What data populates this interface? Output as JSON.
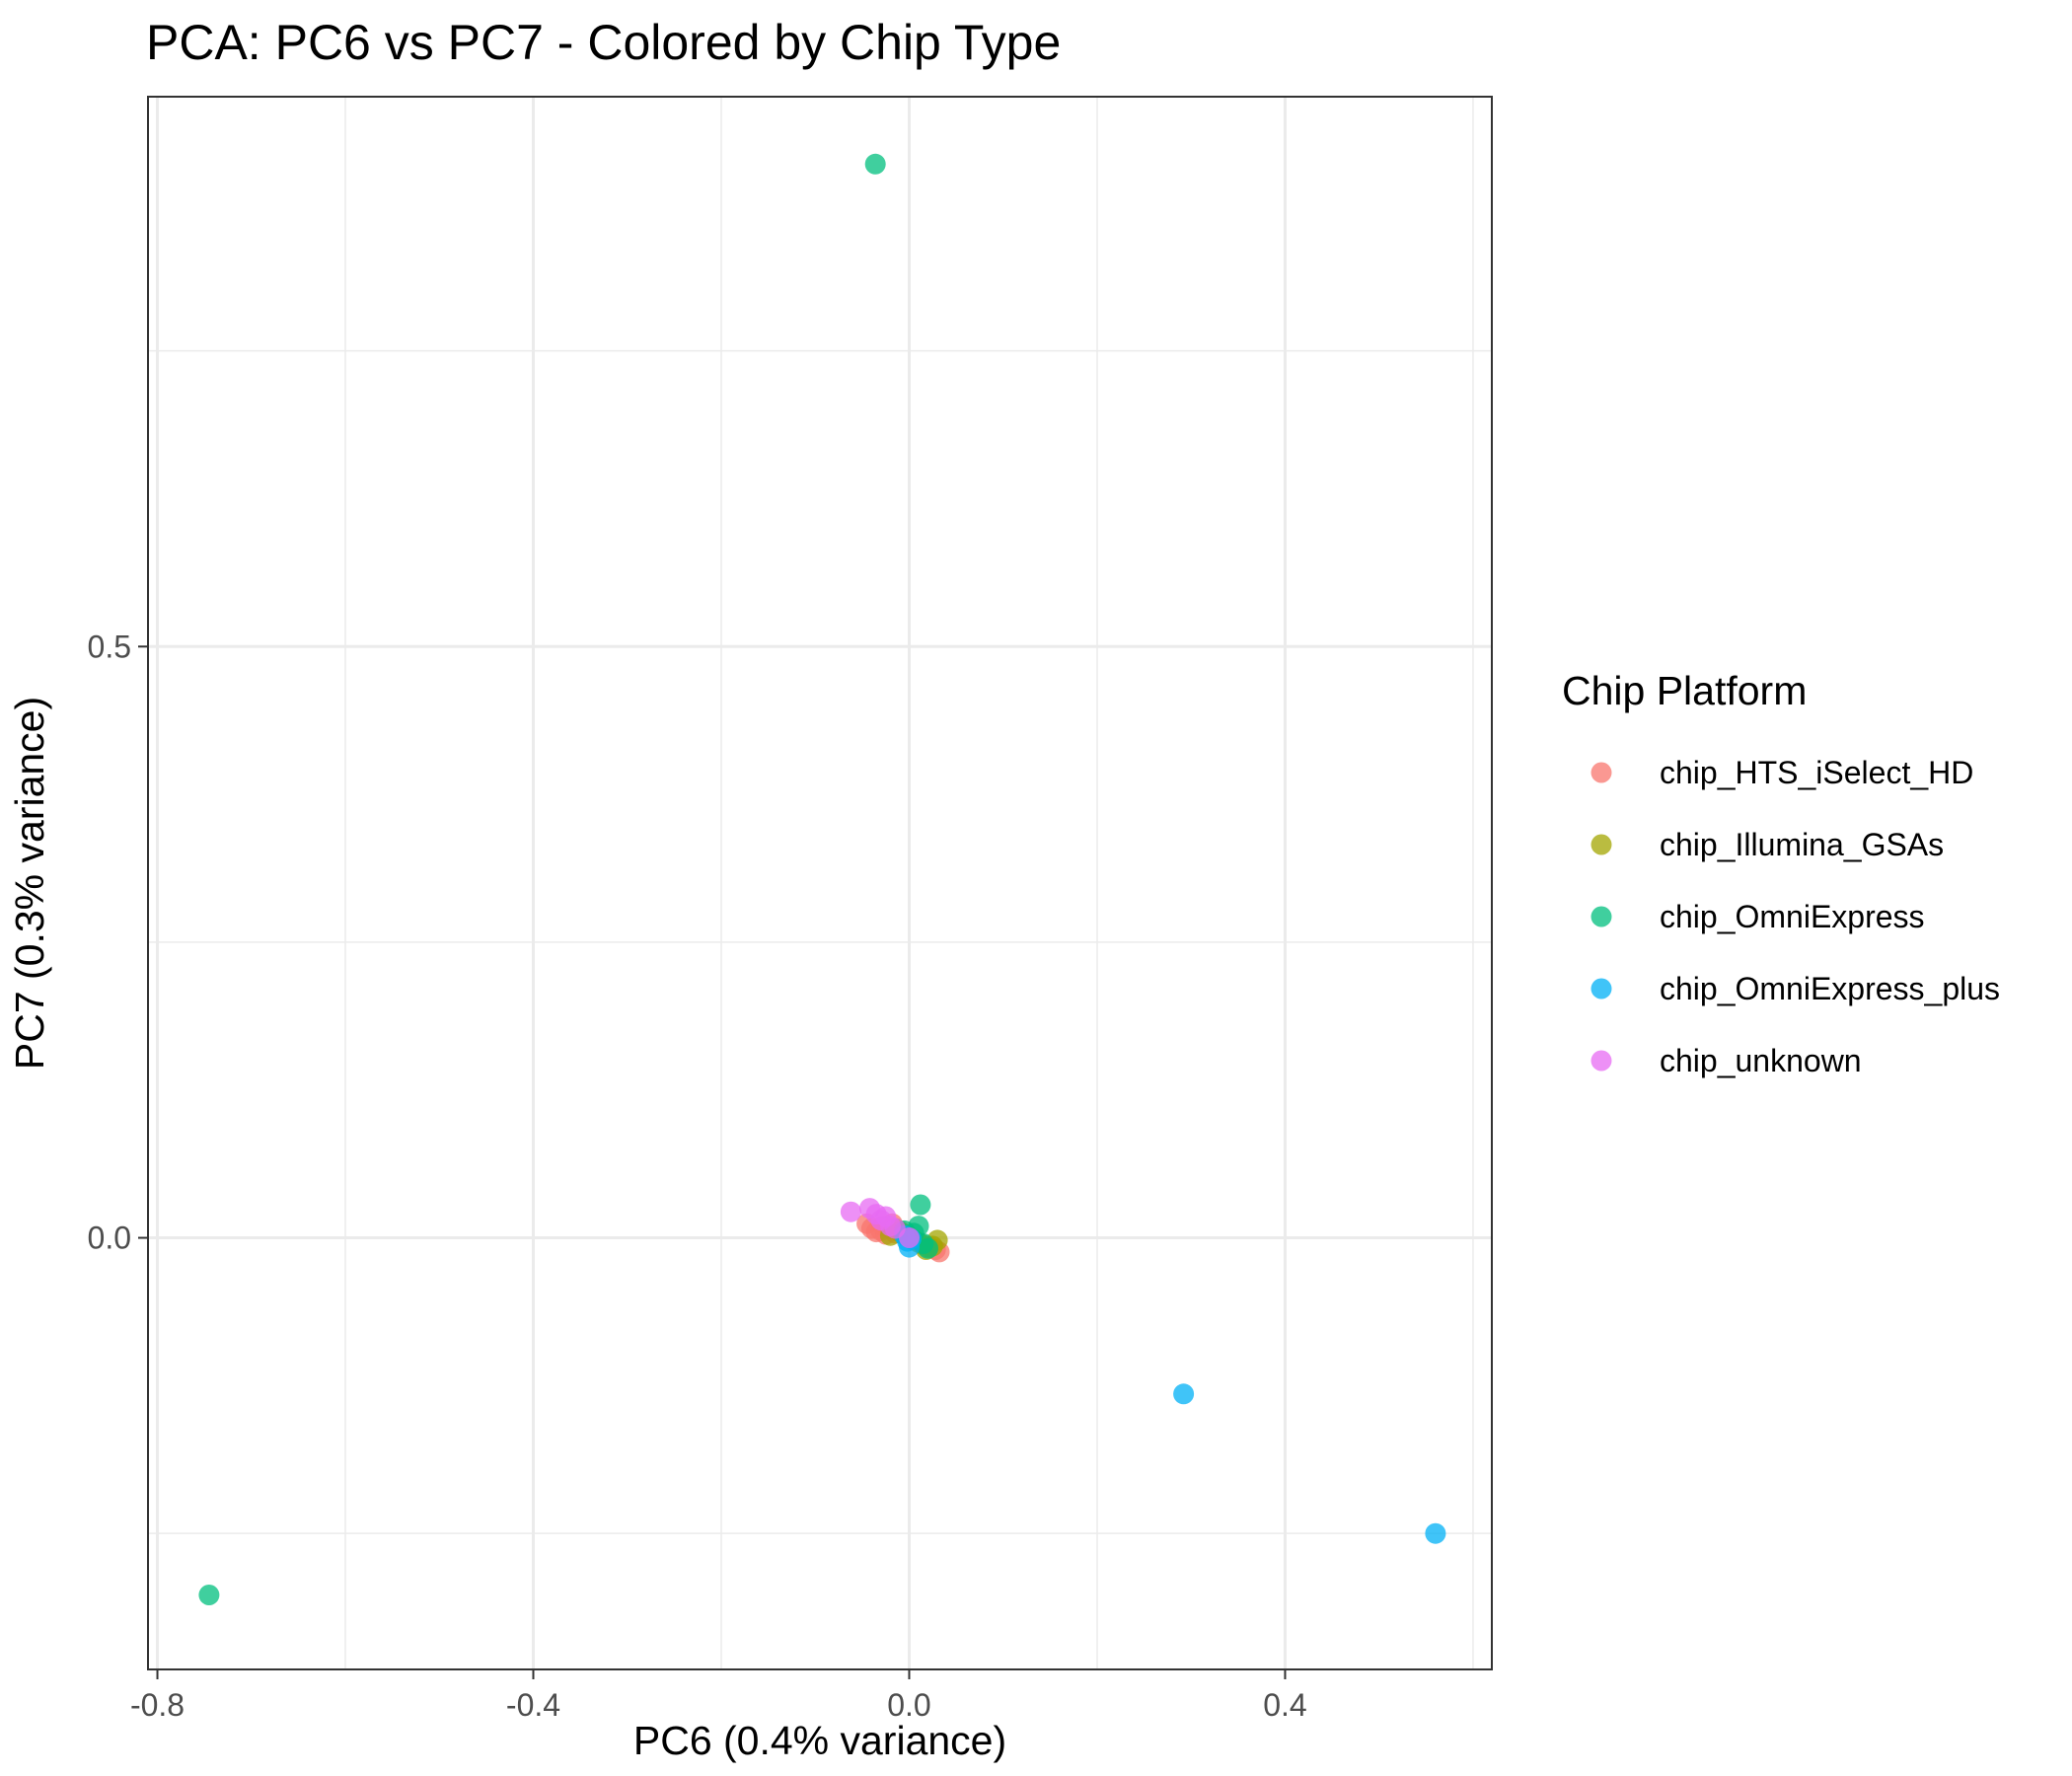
{
  "chart_data": {
    "type": "scatter",
    "title": "PCA: PC6 vs PC7 - Colored by Chip Type",
    "xlabel": "PC6 (0.4% variance)",
    "ylabel": "PC7 (0.3% variance)",
    "xlim": [
      -0.81,
      0.62
    ],
    "ylim": [
      -0.365,
      0.965
    ],
    "x_ticks": [
      -0.8,
      -0.4,
      0.0,
      0.4
    ],
    "x_tick_labels": [
      "-0.8",
      "-0.4",
      "0.0",
      "0.4"
    ],
    "y_ticks": [
      0.0,
      0.5
    ],
    "y_tick_labels": [
      "0.0",
      "0.5"
    ],
    "grid": true,
    "legend": {
      "title": "Chip Platform",
      "position": "right"
    },
    "series": [
      {
        "name": "chip_HTS_iSelect_HD",
        "color": "#F8766D",
        "points": [
          [
            -0.045,
            0.012
          ],
          [
            -0.04,
            0.008
          ],
          [
            -0.035,
            0.005
          ],
          [
            -0.03,
            0.006
          ],
          [
            -0.028,
            0.01
          ],
          [
            -0.025,
            0.003
          ],
          [
            -0.02,
            0.008
          ],
          [
            -0.018,
            0.012
          ],
          [
            -0.015,
            0.004
          ],
          [
            -0.01,
            0.006
          ],
          [
            0.028,
            -0.01
          ],
          [
            0.032,
            -0.012
          ],
          [
            0.022,
            -0.008
          ]
        ]
      },
      {
        "name": "chip_Illumina_GSAs",
        "color": "#A3A500",
        "points": [
          [
            -0.02,
            0.002
          ],
          [
            -0.015,
            0.008
          ],
          [
            -0.01,
            0.005
          ],
          [
            -0.005,
            0.003
          ],
          [
            0.0,
            0.001
          ],
          [
            0.005,
            -0.002
          ],
          [
            0.01,
            -0.004
          ],
          [
            0.015,
            -0.006
          ],
          [
            0.02,
            -0.008
          ],
          [
            0.025,
            -0.007
          ],
          [
            0.03,
            -0.002
          ],
          [
            0.018,
            -0.01
          ]
        ]
      },
      {
        "name": "chip_OmniExpress",
        "color": "#00BF7D",
        "points": [
          [
            -0.036,
            0.908
          ],
          [
            -0.745,
            -0.302
          ],
          [
            0.012,
            0.028
          ],
          [
            0.01,
            0.01
          ],
          [
            0.005,
            0.004
          ],
          [
            0.015,
            -0.005
          ],
          [
            0.02,
            -0.009
          ],
          [
            -0.005,
            0.006
          ]
        ]
      },
      {
        "name": "chip_OmniExpress_plus",
        "color": "#00B0F6",
        "points": [
          [
            0.292,
            -0.132
          ],
          [
            0.56,
            -0.25
          ],
          [
            -0.002,
            -0.003
          ],
          [
            0.0,
            -0.008
          ],
          [
            -0.005,
            0.002
          ],
          [
            0.002,
            -0.001
          ]
        ]
      },
      {
        "name": "chip_unknown",
        "color": "#E76BF3",
        "points": [
          [
            -0.062,
            0.022
          ],
          [
            -0.042,
            0.025
          ],
          [
            -0.035,
            0.02
          ],
          [
            -0.03,
            0.015
          ],
          [
            -0.025,
            0.018
          ],
          [
            -0.02,
            0.01
          ],
          [
            -0.015,
            0.008
          ],
          [
            0.0,
            0.0
          ]
        ]
      }
    ]
  }
}
